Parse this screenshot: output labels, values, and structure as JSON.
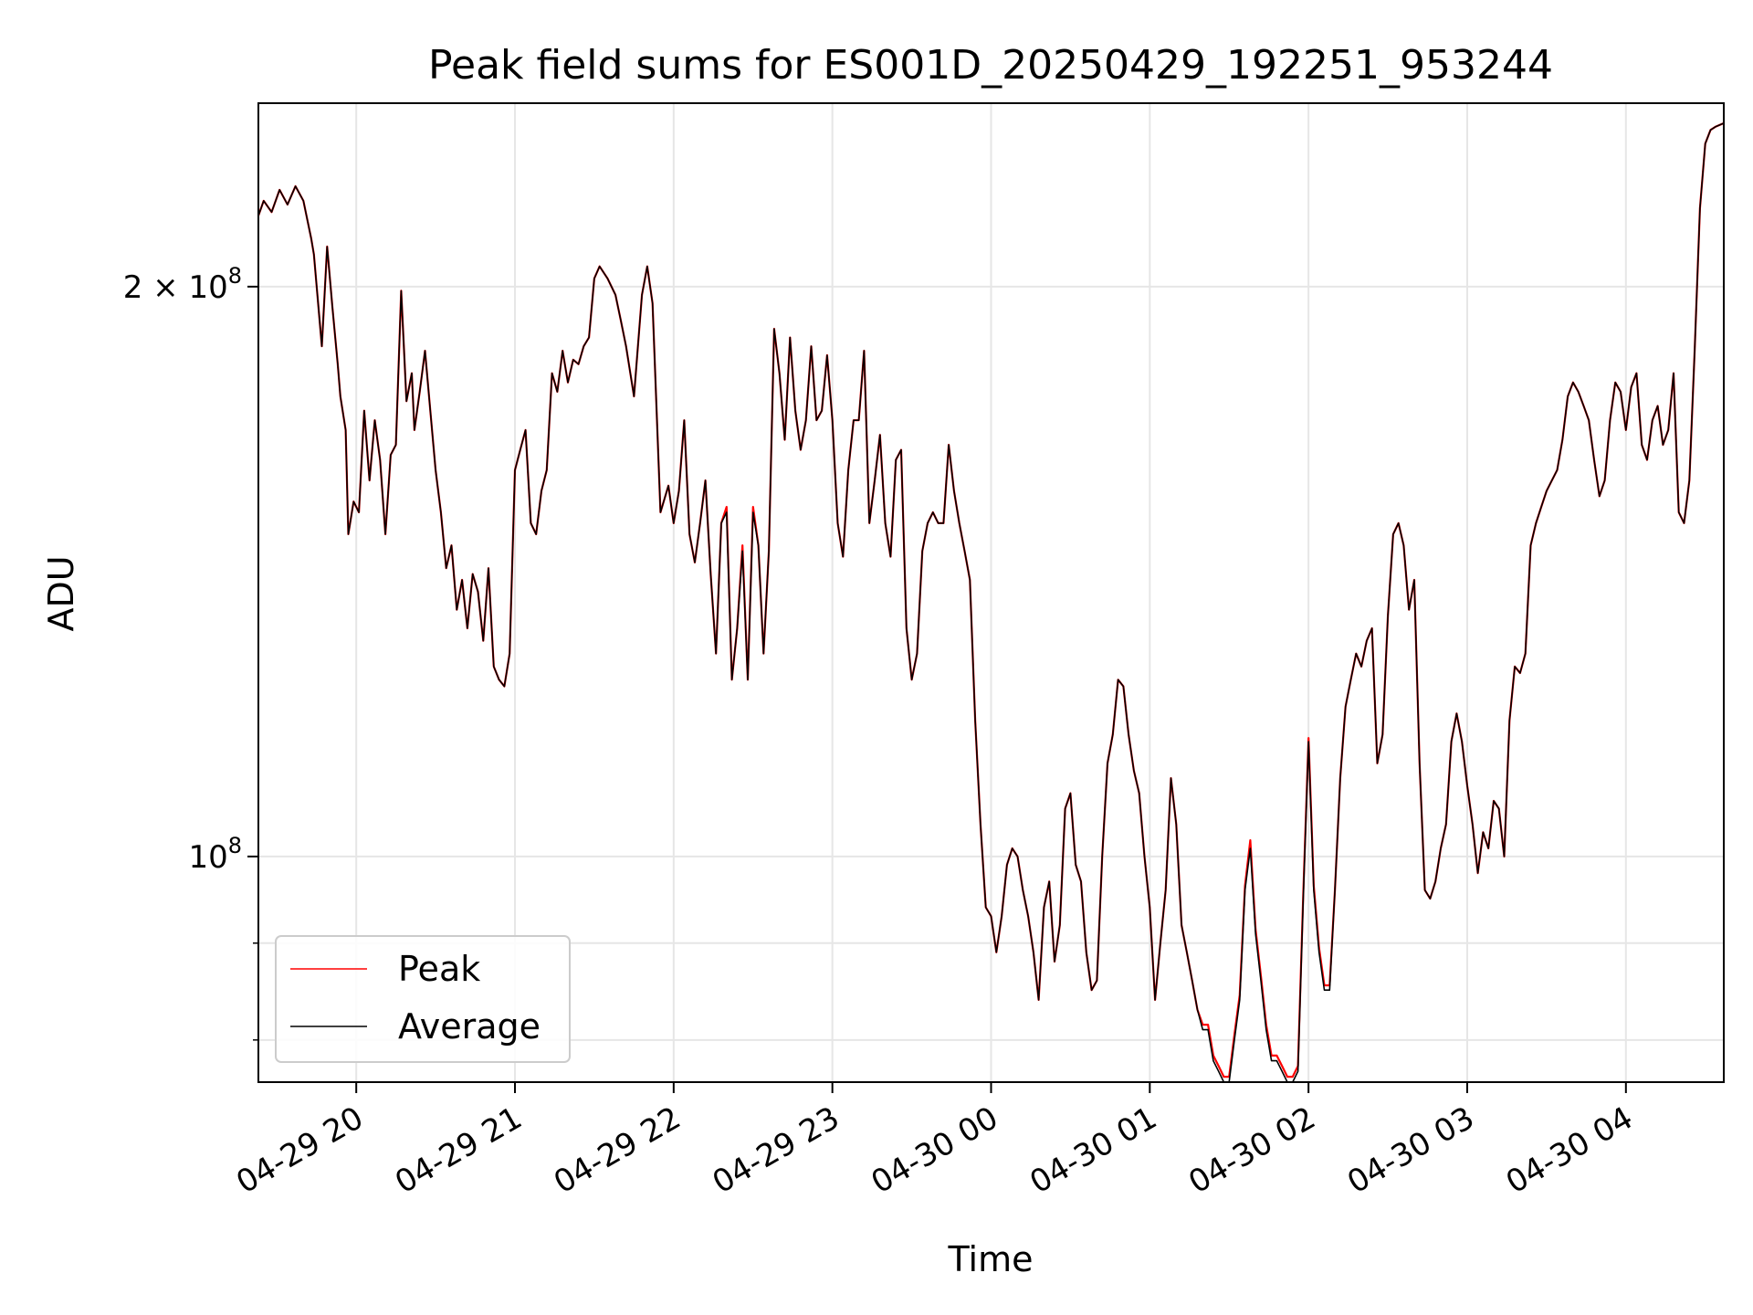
{
  "chart_data": {
    "type": "line",
    "title": "Peak field sums for ES001D_20250429_192251_953244",
    "xlabel": "Time",
    "ylabel": "ADU",
    "yscale": "log",
    "ylim": [
      76000000,
      250000000
    ],
    "xlim": [
      "2025-04-29 19:23",
      "2025-04-30 04:37"
    ],
    "x_ticks": [
      "04-29 20",
      "04-29 21",
      "04-29 22",
      "04-29 23",
      "04-30 00",
      "04-30 01",
      "04-30 02",
      "04-30 03",
      "04-30 04"
    ],
    "y_ticks": [
      {
        "value": 200000000,
        "mantissa": "2",
        "times": "×",
        "base": "10",
        "exp": "8"
      },
      {
        "value": 100000000,
        "mantissa": "",
        "times": "",
        "base": "10",
        "exp": "8"
      }
    ],
    "grid": true,
    "legend": {
      "position": "lower-left",
      "entries": [
        "Peak",
        "Average"
      ]
    },
    "colors": {
      "Peak": "#ff0000",
      "Average": "#000000"
    },
    "x": [
      "2025-04-29 19:23",
      "2025-04-29 19:25",
      "2025-04-29 19:28",
      "2025-04-29 19:31",
      "2025-04-29 19:34",
      "2025-04-29 19:37",
      "2025-04-29 19:40",
      "2025-04-29 19:43",
      "2025-04-29 19:44",
      "2025-04-29 19:47",
      "2025-04-29 19:49",
      "2025-04-29 19:51",
      "2025-04-29 19:53",
      "2025-04-29 19:54",
      "2025-04-29 19:56",
      "2025-04-29 19:57",
      "2025-04-29 19:59",
      "2025-04-29 20:01",
      "2025-04-29 20:03",
      "2025-04-29 20:05",
      "2025-04-29 20:07",
      "2025-04-29 20:09",
      "2025-04-29 20:11",
      "2025-04-29 20:13",
      "2025-04-29 20:15",
      "2025-04-29 20:17",
      "2025-04-29 20:19",
      "2025-04-29 20:21",
      "2025-04-29 20:22",
      "2025-04-29 20:24",
      "2025-04-29 20:26",
      "2025-04-29 20:28",
      "2025-04-29 20:30",
      "2025-04-29 20:32",
      "2025-04-29 20:34",
      "2025-04-29 20:36",
      "2025-04-29 20:38",
      "2025-04-29 20:40",
      "2025-04-29 20:42",
      "2025-04-29 20:44",
      "2025-04-29 20:46",
      "2025-04-29 20:48",
      "2025-04-29 20:50",
      "2025-04-29 20:52",
      "2025-04-29 20:54",
      "2025-04-29 20:56",
      "2025-04-29 20:58",
      "2025-04-29 21:00",
      "2025-04-29 21:02",
      "2025-04-29 21:04",
      "2025-04-29 21:06",
      "2025-04-29 21:08",
      "2025-04-29 21:10",
      "2025-04-29 21:12",
      "2025-04-29 21:14",
      "2025-04-29 21:16",
      "2025-04-29 21:18",
      "2025-04-29 21:20",
      "2025-04-29 21:22",
      "2025-04-29 21:24",
      "2025-04-29 21:26",
      "2025-04-29 21:28",
      "2025-04-29 21:30",
      "2025-04-29 21:32",
      "2025-04-29 21:35",
      "2025-04-29 21:38",
      "2025-04-29 21:40",
      "2025-04-29 21:42",
      "2025-04-29 21:45",
      "2025-04-29 21:48",
      "2025-04-29 21:50",
      "2025-04-29 21:52",
      "2025-04-29 21:55",
      "2025-04-29 21:58",
      "2025-04-29 22:00",
      "2025-04-29 22:02",
      "2025-04-29 22:04",
      "2025-04-29 22:06",
      "2025-04-29 22:08",
      "2025-04-29 22:10",
      "2025-04-29 22:12",
      "2025-04-29 22:14",
      "2025-04-29 22:16",
      "2025-04-29 22:18",
      "2025-04-29 22:20",
      "2025-04-29 22:22",
      "2025-04-29 22:24",
      "2025-04-29 22:26",
      "2025-04-29 22:28",
      "2025-04-29 22:30",
      "2025-04-29 22:32",
      "2025-04-29 22:34",
      "2025-04-29 22:36",
      "2025-04-29 22:38",
      "2025-04-29 22:40",
      "2025-04-29 22:42",
      "2025-04-29 22:44",
      "2025-04-29 22:46",
      "2025-04-29 22:48",
      "2025-04-29 22:50",
      "2025-04-29 22:52",
      "2025-04-29 22:54",
      "2025-04-29 22:56",
      "2025-04-29 22:58",
      "2025-04-29 23:00",
      "2025-04-29 23:02",
      "2025-04-29 23:04",
      "2025-04-29 23:06",
      "2025-04-29 23:08",
      "2025-04-29 23:10",
      "2025-04-29 23:12",
      "2025-04-29 23:14",
      "2025-04-29 23:16",
      "2025-04-29 23:18",
      "2025-04-29 23:20",
      "2025-04-29 23:22",
      "2025-04-29 23:24",
      "2025-04-29 23:26",
      "2025-04-29 23:28",
      "2025-04-29 23:30",
      "2025-04-29 23:32",
      "2025-04-29 23:34",
      "2025-04-29 23:36",
      "2025-04-29 23:38",
      "2025-04-29 23:40",
      "2025-04-29 23:42",
      "2025-04-29 23:44",
      "2025-04-29 23:46",
      "2025-04-29 23:48",
      "2025-04-29 23:50",
      "2025-04-29 23:52",
      "2025-04-29 23:54",
      "2025-04-29 23:56",
      "2025-04-29 23:58",
      "2025-04-30 00:00",
      "2025-04-30 00:02",
      "2025-04-30 00:04",
      "2025-04-30 00:06",
      "2025-04-30 00:08",
      "2025-04-30 00:10",
      "2025-04-30 00:12",
      "2025-04-30 00:14",
      "2025-04-30 00:16",
      "2025-04-30 00:18",
      "2025-04-30 00:20",
      "2025-04-30 00:22",
      "2025-04-30 00:24",
      "2025-04-30 00:26",
      "2025-04-30 00:28",
      "2025-04-30 00:30",
      "2025-04-30 00:32",
      "2025-04-30 00:34",
      "2025-04-30 00:36",
      "2025-04-30 00:38",
      "2025-04-30 00:40",
      "2025-04-30 00:42",
      "2025-04-30 00:44",
      "2025-04-30 00:46",
      "2025-04-30 00:48",
      "2025-04-30 00:50",
      "2025-04-30 00:52",
      "2025-04-30 00:54",
      "2025-04-30 00:56",
      "2025-04-30 00:58",
      "2025-04-30 01:00",
      "2025-04-30 01:02",
      "2025-04-30 01:04",
      "2025-04-30 01:06",
      "2025-04-30 01:08",
      "2025-04-30 01:10",
      "2025-04-30 01:12",
      "2025-04-30 01:14",
      "2025-04-30 01:16",
      "2025-04-30 01:18",
      "2025-04-30 01:20",
      "2025-04-30 01:22",
      "2025-04-30 01:24",
      "2025-04-30 01:26",
      "2025-04-30 01:28",
      "2025-04-30 01:30",
      "2025-04-30 01:32",
      "2025-04-30 01:34",
      "2025-04-30 01:36",
      "2025-04-30 01:38",
      "2025-04-30 01:40",
      "2025-04-30 01:42",
      "2025-04-30 01:44",
      "2025-04-30 01:46",
      "2025-04-30 01:48",
      "2025-04-30 01:50",
      "2025-04-30 01:52",
      "2025-04-30 01:54",
      "2025-04-30 01:56",
      "2025-04-30 01:58",
      "2025-04-30 02:00",
      "2025-04-30 02:02",
      "2025-04-30 02:04",
      "2025-04-30 02:06",
      "2025-04-30 02:08",
      "2025-04-30 02:10",
      "2025-04-30 02:12",
      "2025-04-30 02:14",
      "2025-04-30 02:16",
      "2025-04-30 02:18",
      "2025-04-30 02:20",
      "2025-04-30 02:22",
      "2025-04-30 02:24",
      "2025-04-30 02:26",
      "2025-04-30 02:28",
      "2025-04-30 02:30",
      "2025-04-30 02:32",
      "2025-04-30 02:34",
      "2025-04-30 02:36",
      "2025-04-30 02:38",
      "2025-04-30 02:40",
      "2025-04-30 02:42",
      "2025-04-30 02:44",
      "2025-04-30 02:46",
      "2025-04-30 02:48",
      "2025-04-30 02:50",
      "2025-04-30 02:52",
      "2025-04-30 02:54",
      "2025-04-30 02:56",
      "2025-04-30 02:58",
      "2025-04-30 03:00",
      "2025-04-30 03:02",
      "2025-04-30 03:04",
      "2025-04-30 03:06",
      "2025-04-30 03:08",
      "2025-04-30 03:10",
      "2025-04-30 03:12",
      "2025-04-30 03:14",
      "2025-04-30 03:16",
      "2025-04-30 03:18",
      "2025-04-30 03:20",
      "2025-04-30 03:22",
      "2025-04-30 03:24",
      "2025-04-30 03:26",
      "2025-04-30 03:28",
      "2025-04-30 03:30",
      "2025-04-30 03:32",
      "2025-04-30 03:34",
      "2025-04-30 03:36",
      "2025-04-30 03:38",
      "2025-04-30 03:40",
      "2025-04-30 03:42",
      "2025-04-30 03:44",
      "2025-04-30 03:46",
      "2025-04-30 03:48",
      "2025-04-30 03:50",
      "2025-04-30 03:52",
      "2025-04-30 03:54",
      "2025-04-30 03:56",
      "2025-04-30 03:58",
      "2025-04-30 04:00",
      "2025-04-30 04:02",
      "2025-04-30 04:04",
      "2025-04-30 04:06",
      "2025-04-30 04:08",
      "2025-04-30 04:10",
      "2025-04-30 04:12",
      "2025-04-30 04:14",
      "2025-04-30 04:16",
      "2025-04-30 04:18",
      "2025-04-30 04:20",
      "2025-04-30 04:22",
      "2025-04-30 04:24",
      "2025-04-30 04:26",
      "2025-04-30 04:28",
      "2025-04-30 04:30",
      "2025-04-30 04:32",
      "2025-04-30 04:34",
      "2025-04-30 04:37"
    ],
    "series": [
      {
        "name": "Average",
        "values": [
          218,
          222,
          219,
          225,
          221,
          226,
          222,
          212,
          208,
          186,
          210,
          195,
          182,
          175,
          168,
          148,
          154,
          152,
          172,
          158,
          170,
          162,
          148,
          163,
          165,
          199,
          174,
          180,
          168,
          176,
          185,
          172,
          160,
          152,
          142,
          146,
          135,
          140,
          132,
          141,
          138,
          130,
          142,
          126,
          124,
          123,
          128,
          160,
          164,
          168,
          150,
          148,
          156,
          160,
          180,
          176,
          185,
          178,
          183,
          182,
          186,
          188,
          202,
          205,
          202,
          198,
          192,
          186,
          175,
          198,
          205,
          196,
          152,
          157,
          150,
          156,
          170,
          148,
          143,
          150,
          158,
          141,
          128,
          150,
          152,
          124,
          132,
          145,
          124,
          152,
          146,
          128,
          145,
          190,
          180,
          166,
          188,
          172,
          164,
          170,
          186,
          170,
          172,
          184,
          170,
          150,
          144,
          160,
          170,
          170,
          185,
          150,
          158,
          167,
          150,
          144,
          162,
          164,
          132,
          124,
          128,
          145,
          150,
          152,
          150,
          150,
          165,
          156,
          150,
          145,
          140,
          118,
          104,
          94,
          93,
          89,
          93,
          99,
          101,
          100,
          96,
          93,
          89,
          84,
          94,
          97,
          88,
          92,
          106,
          108,
          99,
          97,
          89,
          85,
          86,
          100,
          112,
          116,
          124,
          123,
          116,
          111,
          108,
          100,
          94,
          84,
          90,
          96,
          110,
          104,
          92,
          89,
          86,
          83,
          81,
          81,
          78,
          77,
          76,
          76,
          80,
          84,
          96,
          101,
          91,
          86,
          81,
          78,
          78,
          77,
          76,
          76,
          77,
          95,
          115,
          96,
          89,
          85,
          85,
          96,
          110,
          120,
          124,
          128,
          126,
          130,
          132,
          112,
          116,
          134,
          148,
          150,
          146,
          135,
          140,
          112,
          96,
          95,
          97,
          101,
          104,
          115,
          119,
          115,
          109,
          104,
          98,
          103,
          101,
          107,
          106,
          100,
          118,
          126,
          125,
          128,
          146,
          150,
          153,
          156,
          158,
          160,
          166,
          175,
          178,
          176,
          173,
          170,
          162,
          155,
          158,
          170,
          178,
          176,
          168,
          177,
          180,
          165,
          162,
          170,
          173,
          165,
          168,
          180,
          152,
          150,
          158,
          185,
          220,
          238,
          242,
          243,
          244
        ]
      },
      {
        "name": "Peak",
        "values": [
          218,
          222,
          219,
          225,
          221,
          226,
          222,
          212,
          208,
          186,
          210,
          195,
          182,
          175,
          168,
          148,
          154,
          152,
          172,
          158,
          170,
          162,
          148,
          163,
          165,
          199,
          174,
          180,
          168,
          176,
          185,
          172,
          160,
          152,
          142,
          146,
          135,
          140,
          132,
          141,
          138,
          130,
          142,
          126,
          124,
          123,
          128,
          160,
          164,
          168,
          150,
          148,
          156,
          160,
          180,
          176,
          185,
          178,
          183,
          182,
          186,
          188,
          202,
          205,
          202,
          198,
          192,
          186,
          175,
          198,
          205,
          196,
          152,
          157,
          150,
          156,
          170,
          148,
          143,
          150,
          158,
          141,
          128,
          150,
          153,
          124,
          132,
          146,
          124,
          153,
          146,
          128,
          145,
          190,
          180,
          166,
          188,
          172,
          164,
          170,
          186,
          170,
          172,
          184,
          170,
          150,
          144,
          160,
          170,
          170,
          185,
          150,
          158,
          167,
          150,
          144,
          162,
          164,
          132,
          124,
          128,
          145,
          150,
          152,
          150,
          150,
          165,
          156,
          150,
          145,
          140,
          118,
          104,
          94,
          93,
          89,
          93,
          99,
          101,
          100,
          96,
          93,
          89,
          84,
          94,
          97,
          88,
          92,
          106,
          108,
          99,
          97,
          89,
          85,
          86,
          100,
          112,
          116,
          124,
          123,
          116,
          111,
          108,
          100,
          94,
          84,
          90,
          96,
          110,
          104,
          92,
          89,
          86,
          83,
          81.5,
          81.5,
          78.5,
          77.5,
          76.5,
          76.5,
          80.5,
          84.5,
          96.5,
          102,
          91.5,
          86.5,
          81.5,
          78.5,
          78.5,
          77.5,
          76.5,
          76.5,
          77.5,
          95.5,
          115.5,
          96.5,
          89.5,
          85.5,
          85.5,
          96,
          110,
          120,
          124,
          128,
          126,
          130,
          132,
          112,
          116,
          134,
          148,
          150,
          146,
          135,
          140,
          112,
          96,
          95,
          97,
          101,
          104,
          115,
          119,
          115,
          109,
          104,
          98,
          103,
          101,
          107,
          106,
          100,
          118,
          126,
          125,
          128,
          146,
          150,
          153,
          156,
          158,
          160,
          166,
          175,
          178,
          176,
          173,
          170,
          162,
          155,
          158,
          170,
          178,
          176,
          168,
          177,
          180,
          165,
          162,
          170,
          173,
          165,
          168,
          180,
          152,
          150,
          158,
          185,
          220,
          238,
          242,
          243,
          244
        ]
      }
    ],
    "value_unit_multiplier": 1000000
  }
}
